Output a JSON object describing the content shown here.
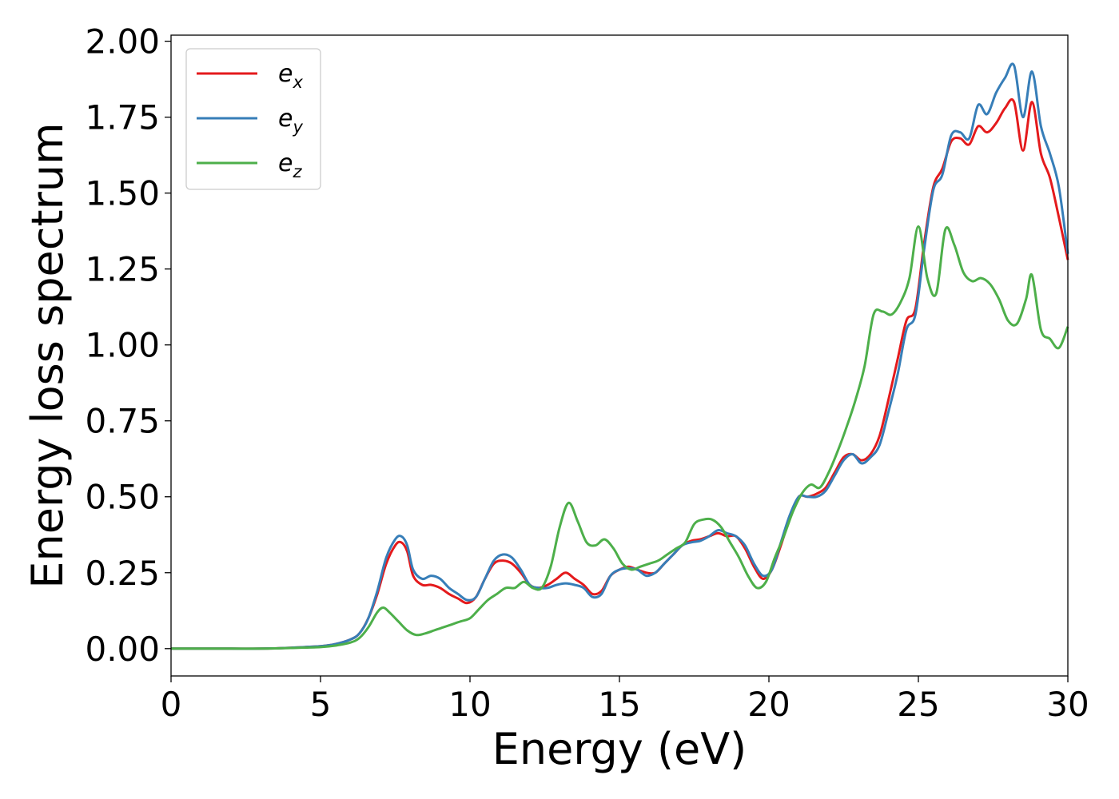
{
  "chart_data": {
    "type": "line",
    "xlabel": "Energy (eV)",
    "ylabel": "Energy loss spectrum",
    "xlim": [
      0,
      30
    ],
    "ylim": [
      -0.09,
      2.02
    ],
    "xticks": [
      0,
      5,
      10,
      15,
      20,
      25,
      30
    ],
    "xtick_labels": [
      "0",
      "5",
      "10",
      "15",
      "20",
      "25",
      "30"
    ],
    "yticks": [
      0,
      0.25,
      0.5,
      0.75,
      1.0,
      1.25,
      1.5,
      1.75,
      2.0
    ],
    "ytick_labels": [
      "0.00",
      "0.25",
      "0.50",
      "0.75",
      "1.00",
      "1.25",
      "1.50",
      "1.75",
      "2.00"
    ],
    "grid": false,
    "legend_position": "upper-left",
    "series": [
      {
        "name": "e_x",
        "legend_base": "e",
        "legend_sub": "x",
        "color": "#e41a1c",
        "x": [
          0,
          1,
          2,
          3,
          4,
          5,
          5.5,
          6,
          6.3,
          6.6,
          6.9,
          7.2,
          7.5,
          7.7,
          7.9,
          8.1,
          8.4,
          8.7,
          9.0,
          9.3,
          9.6,
          9.9,
          10.2,
          10.5,
          10.8,
          11.1,
          11.4,
          11.7,
          12.0,
          12.3,
          12.6,
          12.9,
          13.2,
          13.5,
          13.8,
          14.1,
          14.4,
          14.7,
          15.0,
          15.3,
          15.6,
          15.9,
          16.2,
          16.5,
          16.8,
          17.1,
          17.4,
          17.7,
          18.0,
          18.3,
          18.6,
          18.9,
          19.2,
          19.5,
          19.8,
          20.1,
          20.4,
          20.7,
          21.0,
          21.3,
          21.6,
          21.9,
          22.2,
          22.5,
          22.8,
          23.1,
          23.4,
          23.7,
          24.0,
          24.3,
          24.6,
          24.9,
          25.2,
          25.5,
          25.8,
          26.1,
          26.4,
          26.7,
          27.0,
          27.3,
          27.6,
          27.9,
          28.2,
          28.5,
          28.8,
          29.1,
          29.4,
          29.7,
          30.0
        ],
        "y": [
          0.0,
          0.0,
          0.0,
          0.0,
          0.003,
          0.008,
          0.015,
          0.03,
          0.05,
          0.1,
          0.18,
          0.28,
          0.34,
          0.35,
          0.32,
          0.24,
          0.21,
          0.21,
          0.2,
          0.18,
          0.165,
          0.15,
          0.17,
          0.23,
          0.28,
          0.29,
          0.28,
          0.25,
          0.21,
          0.2,
          0.21,
          0.23,
          0.25,
          0.23,
          0.21,
          0.18,
          0.19,
          0.24,
          0.26,
          0.27,
          0.26,
          0.25,
          0.25,
          0.28,
          0.31,
          0.34,
          0.355,
          0.36,
          0.37,
          0.38,
          0.37,
          0.37,
          0.33,
          0.27,
          0.23,
          0.26,
          0.34,
          0.43,
          0.5,
          0.5,
          0.51,
          0.53,
          0.58,
          0.63,
          0.64,
          0.62,
          0.64,
          0.7,
          0.82,
          0.95,
          1.08,
          1.12,
          1.34,
          1.52,
          1.58,
          1.67,
          1.68,
          1.66,
          1.72,
          1.7,
          1.73,
          1.78,
          1.8,
          1.64,
          1.8,
          1.63,
          1.55,
          1.42,
          1.28
        ]
      },
      {
        "name": "e_y",
        "legend_base": "e",
        "legend_sub": "y",
        "color": "#377eb8",
        "x": [
          0,
          1,
          2,
          3,
          4,
          5,
          5.5,
          6,
          6.3,
          6.6,
          6.9,
          7.2,
          7.5,
          7.7,
          7.9,
          8.1,
          8.4,
          8.7,
          9.0,
          9.3,
          9.6,
          9.9,
          10.2,
          10.5,
          10.8,
          11.1,
          11.4,
          11.7,
          12.0,
          12.3,
          12.6,
          12.9,
          13.2,
          13.5,
          13.8,
          14.1,
          14.4,
          14.7,
          15.0,
          15.3,
          15.6,
          15.9,
          16.2,
          16.5,
          16.8,
          17.1,
          17.4,
          17.7,
          18.0,
          18.3,
          18.6,
          18.9,
          19.2,
          19.5,
          19.8,
          20.1,
          20.4,
          20.7,
          21.0,
          21.3,
          21.6,
          21.9,
          22.2,
          22.5,
          22.8,
          23.1,
          23.4,
          23.7,
          24.0,
          24.3,
          24.6,
          24.9,
          25.2,
          25.5,
          25.8,
          26.1,
          26.4,
          26.7,
          27.0,
          27.3,
          27.6,
          27.9,
          28.2,
          28.5,
          28.8,
          29.1,
          29.4,
          29.7,
          30.0
        ],
        "y": [
          0.0,
          0.0,
          0.0,
          0.0,
          0.003,
          0.008,
          0.015,
          0.03,
          0.05,
          0.1,
          0.19,
          0.3,
          0.36,
          0.37,
          0.34,
          0.26,
          0.23,
          0.24,
          0.23,
          0.2,
          0.18,
          0.16,
          0.17,
          0.23,
          0.29,
          0.31,
          0.3,
          0.26,
          0.21,
          0.2,
          0.2,
          0.21,
          0.215,
          0.21,
          0.2,
          0.17,
          0.18,
          0.24,
          0.26,
          0.265,
          0.26,
          0.24,
          0.25,
          0.28,
          0.31,
          0.34,
          0.35,
          0.355,
          0.37,
          0.39,
          0.38,
          0.37,
          0.34,
          0.28,
          0.24,
          0.26,
          0.35,
          0.44,
          0.5,
          0.5,
          0.5,
          0.52,
          0.57,
          0.62,
          0.64,
          0.61,
          0.63,
          0.67,
          0.78,
          0.9,
          1.05,
          1.1,
          1.32,
          1.51,
          1.56,
          1.69,
          1.7,
          1.68,
          1.79,
          1.76,
          1.83,
          1.88,
          1.92,
          1.75,
          1.9,
          1.72,
          1.63,
          1.52,
          1.3
        ]
      },
      {
        "name": "e_z",
        "legend_base": "e",
        "legend_sub": "z",
        "color": "#4daf4a",
        "x": [
          0,
          1,
          2,
          3,
          4,
          5,
          5.5,
          6,
          6.3,
          6.6,
          6.9,
          7.1,
          7.3,
          7.6,
          7.9,
          8.2,
          8.5,
          8.8,
          9.1,
          9.4,
          9.7,
          10.0,
          10.3,
          10.6,
          10.9,
          11.2,
          11.5,
          11.8,
          12.1,
          12.4,
          12.7,
          13.0,
          13.3,
          13.6,
          13.9,
          14.2,
          14.5,
          14.8,
          15.1,
          15.4,
          15.7,
          16.0,
          16.3,
          16.6,
          16.9,
          17.2,
          17.5,
          17.8,
          18.1,
          18.4,
          18.7,
          19.0,
          19.3,
          19.6,
          19.9,
          20.2,
          20.5,
          20.8,
          21.1,
          21.4,
          21.7,
          22.0,
          22.3,
          22.6,
          22.9,
          23.2,
          23.5,
          23.8,
          24.1,
          24.4,
          24.7,
          25.0,
          25.3,
          25.6,
          25.9,
          26.2,
          26.5,
          26.8,
          27.1,
          27.4,
          27.7,
          28.0,
          28.3,
          28.6,
          28.8,
          29.1,
          29.4,
          29.7,
          30.0
        ],
        "y": [
          0.0,
          0.0,
          0.0,
          0.0,
          0.002,
          0.005,
          0.01,
          0.02,
          0.035,
          0.07,
          0.12,
          0.135,
          0.12,
          0.09,
          0.06,
          0.045,
          0.05,
          0.06,
          0.07,
          0.08,
          0.09,
          0.1,
          0.13,
          0.16,
          0.18,
          0.2,
          0.2,
          0.22,
          0.2,
          0.2,
          0.27,
          0.4,
          0.48,
          0.42,
          0.35,
          0.34,
          0.36,
          0.33,
          0.28,
          0.26,
          0.27,
          0.28,
          0.29,
          0.31,
          0.33,
          0.35,
          0.41,
          0.425,
          0.425,
          0.4,
          0.35,
          0.3,
          0.24,
          0.2,
          0.22,
          0.3,
          0.37,
          0.45,
          0.51,
          0.54,
          0.53,
          0.58,
          0.65,
          0.73,
          0.82,
          0.93,
          1.1,
          1.11,
          1.1,
          1.14,
          1.22,
          1.39,
          1.22,
          1.17,
          1.38,
          1.33,
          1.24,
          1.21,
          1.22,
          1.2,
          1.15,
          1.08,
          1.07,
          1.15,
          1.23,
          1.05,
          1.02,
          0.99,
          1.06
        ]
      }
    ]
  }
}
